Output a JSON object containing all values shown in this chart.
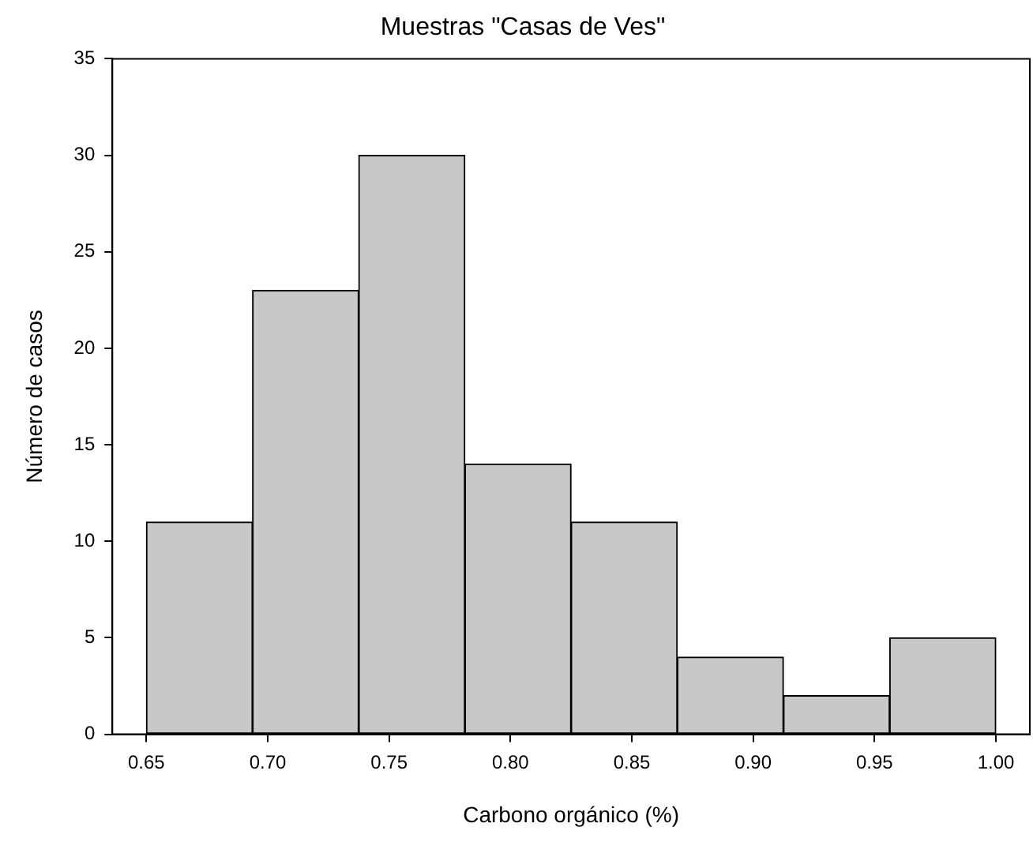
{
  "chart_data": {
    "type": "histogram",
    "title": "Muestras \"Casas de Ves\"",
    "xlabel": "Carbono orgánico (%)",
    "ylabel": "Número de casos",
    "bins": [
      0.65,
      0.69375,
      0.7375,
      0.78125,
      0.825,
      0.86875,
      0.9125,
      0.95625,
      1.0
    ],
    "values": [
      11,
      23,
      30,
      14,
      11,
      4,
      2,
      5
    ],
    "color": "#c8c8c8",
    "xlim": [
      0.636,
      1.014
    ],
    "xticks": [
      {
        "value": 0.65,
        "label": "0.65"
      },
      {
        "value": 0.7,
        "label": "0.70"
      },
      {
        "value": 0.75,
        "label": "0.75"
      },
      {
        "value": 0.8,
        "label": "0.80"
      },
      {
        "value": 0.85,
        "label": "0.85"
      },
      {
        "value": 0.9,
        "label": "0.90"
      },
      {
        "value": 0.95,
        "label": "0.95"
      },
      {
        "value": 1.0,
        "label": "1.00"
      }
    ],
    "ylim": [
      0,
      35
    ],
    "yticks": [
      0,
      5,
      10,
      15,
      20,
      25,
      30,
      35
    ],
    "grid": false,
    "legend": false
  }
}
